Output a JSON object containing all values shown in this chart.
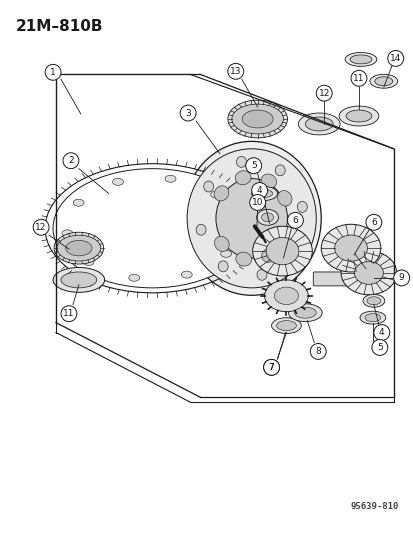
{
  "title": "21M–810B",
  "watermark": "95639-810",
  "bg_color": "#ffffff",
  "line_color": "#1a1a1a",
  "fig_width": 4.14,
  "fig_height": 5.33,
  "dpi": 100
}
